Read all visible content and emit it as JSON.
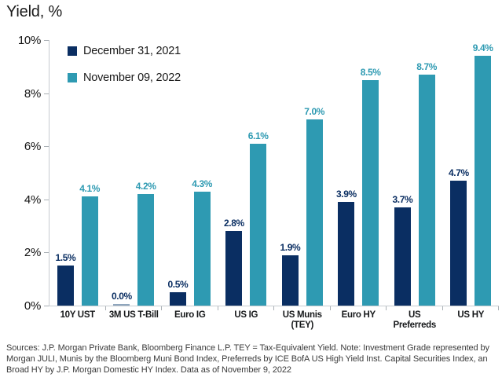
{
  "title": "Yield, %",
  "chart_data": {
    "type": "bar",
    "title": "Yield, %",
    "xlabel": "",
    "ylabel": "Yield, %",
    "ylim": [
      0,
      10
    ],
    "yticks": [
      "0%",
      "2%",
      "4%",
      "6%",
      "8%",
      "10%"
    ],
    "grid": false,
    "legend_position": "top-left-inside",
    "categories": [
      "10Y UST",
      "3M US T-Bill",
      "Euro IG",
      "US IG",
      "US Munis\n(TEY)",
      "Euro HY",
      "US Preferreds",
      "US HY"
    ],
    "series": [
      {
        "name": "December 31, 2021",
        "color": "#0a2e62",
        "zero_bar_color": "#8fa6bd",
        "values": [
          1.5,
          0.0,
          0.5,
          2.8,
          1.9,
          3.9,
          3.7,
          4.7
        ],
        "labels": [
          "1.5%",
          "0.0%",
          "0.5%",
          "2.8%",
          "1.9%",
          "3.9%",
          "3.7%",
          "4.7%"
        ]
      },
      {
        "name": "November 09, 2022",
        "color": "#2e9ab2",
        "zero_bar_color": "#8fa6bd",
        "values": [
          4.1,
          4.2,
          4.3,
          6.1,
          7.0,
          8.5,
          8.7,
          9.4
        ],
        "labels": [
          "4.1%",
          "4.2%",
          "4.3%",
          "6.1%",
          "7.0%",
          "8.5%",
          "8.7%",
          "9.4%"
        ]
      }
    ]
  },
  "colors": {
    "axis": "#c6cbd0",
    "tick": "#aab0b5",
    "title_text": "#1a1a1a",
    "footer_text": "#3b3b3b"
  },
  "footer": {
    "lines": [
      "Sources: J.P. Morgan Private Bank, Bloomberg Finance L.P. TEY = Tax-Equivalent Yield. Note: Investment Grade represented by",
      "Morgan JULI, Munis by the Bloomberg Muni Bond Index, Preferreds by ICE BofA US High Yield Inst. Capital Securities Index, an",
      "Broad HY by J.P. Morgan Domestic HY Index. Data as of November 9, 2022"
    ]
  }
}
